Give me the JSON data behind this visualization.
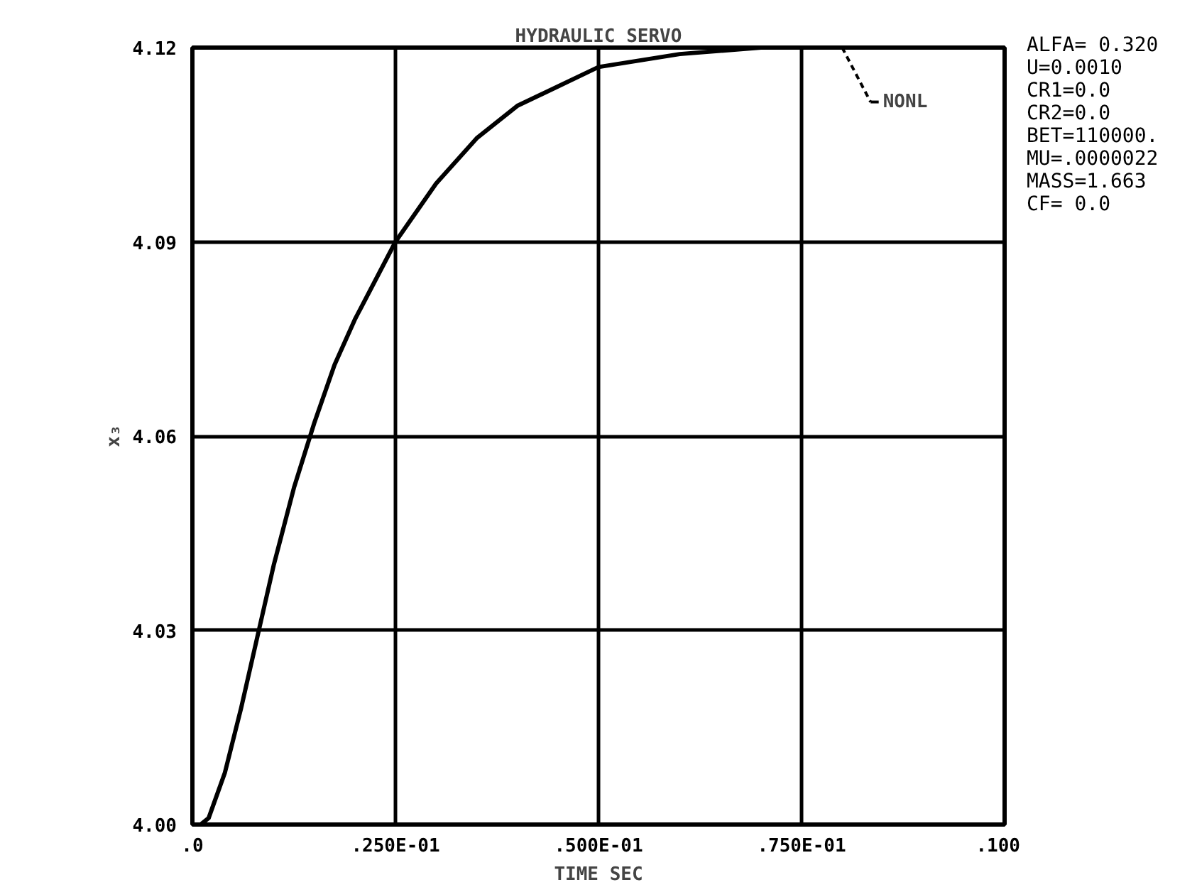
{
  "chart_data": {
    "type": "line",
    "title": "HYDRAULIC SERVO",
    "xlabel": "TIME SEC",
    "ylabel": "x₃",
    "x": [
      0,
      0.001,
      0.002,
      0.004,
      0.006,
      0.008,
      0.01,
      0.0125,
      0.015,
      0.0175,
      0.02,
      0.025,
      0.03,
      0.035,
      0.04,
      0.045,
      0.05,
      0.06,
      0.07,
      0.08,
      0.09,
      0.1
    ],
    "series": [
      {
        "color": "#000000",
        "values": [
          4.0,
          4.0,
          4.001,
          4.008,
          4.018,
          4.029,
          4.04,
          4.052,
          4.062,
          4.071,
          4.078,
          4.09,
          4.099,
          4.106,
          4.111,
          4.114,
          4.117,
          4.119,
          4.12,
          4.12,
          4.12,
          4.12
        ]
      }
    ],
    "xlim": [
      0,
      0.1
    ],
    "ylim": [
      4.0,
      4.12
    ],
    "xticks": [
      {
        "value": 0,
        "label": ".0"
      },
      {
        "value": 0.025,
        "label": ".250E-01"
      },
      {
        "value": 0.05,
        "label": ".500E-01"
      },
      {
        "value": 0.075,
        "label": ".750E-01"
      },
      {
        "value": 0.1,
        "label": ".100"
      }
    ],
    "yticks": [
      {
        "value": 4.0,
        "label": "4.00"
      },
      {
        "value": 4.03,
        "label": "4.03"
      },
      {
        "value": 4.06,
        "label": "4.06"
      },
      {
        "value": 4.09,
        "label": "4.09"
      },
      {
        "value": 4.12,
        "label": "4.12"
      }
    ],
    "grid": true,
    "marker": "none",
    "line_style": "solid",
    "annotations": [
      {
        "text": "NONL",
        "x": 0.08,
        "y": 4.12
      },
      "ALFA= 0.320",
      "U=0.0010",
      "CR1=0.0",
      "CR2=0.0",
      "BET=110000.",
      "MU=.0000022",
      "MASS=1.663",
      "CF= 0.0"
    ]
  }
}
